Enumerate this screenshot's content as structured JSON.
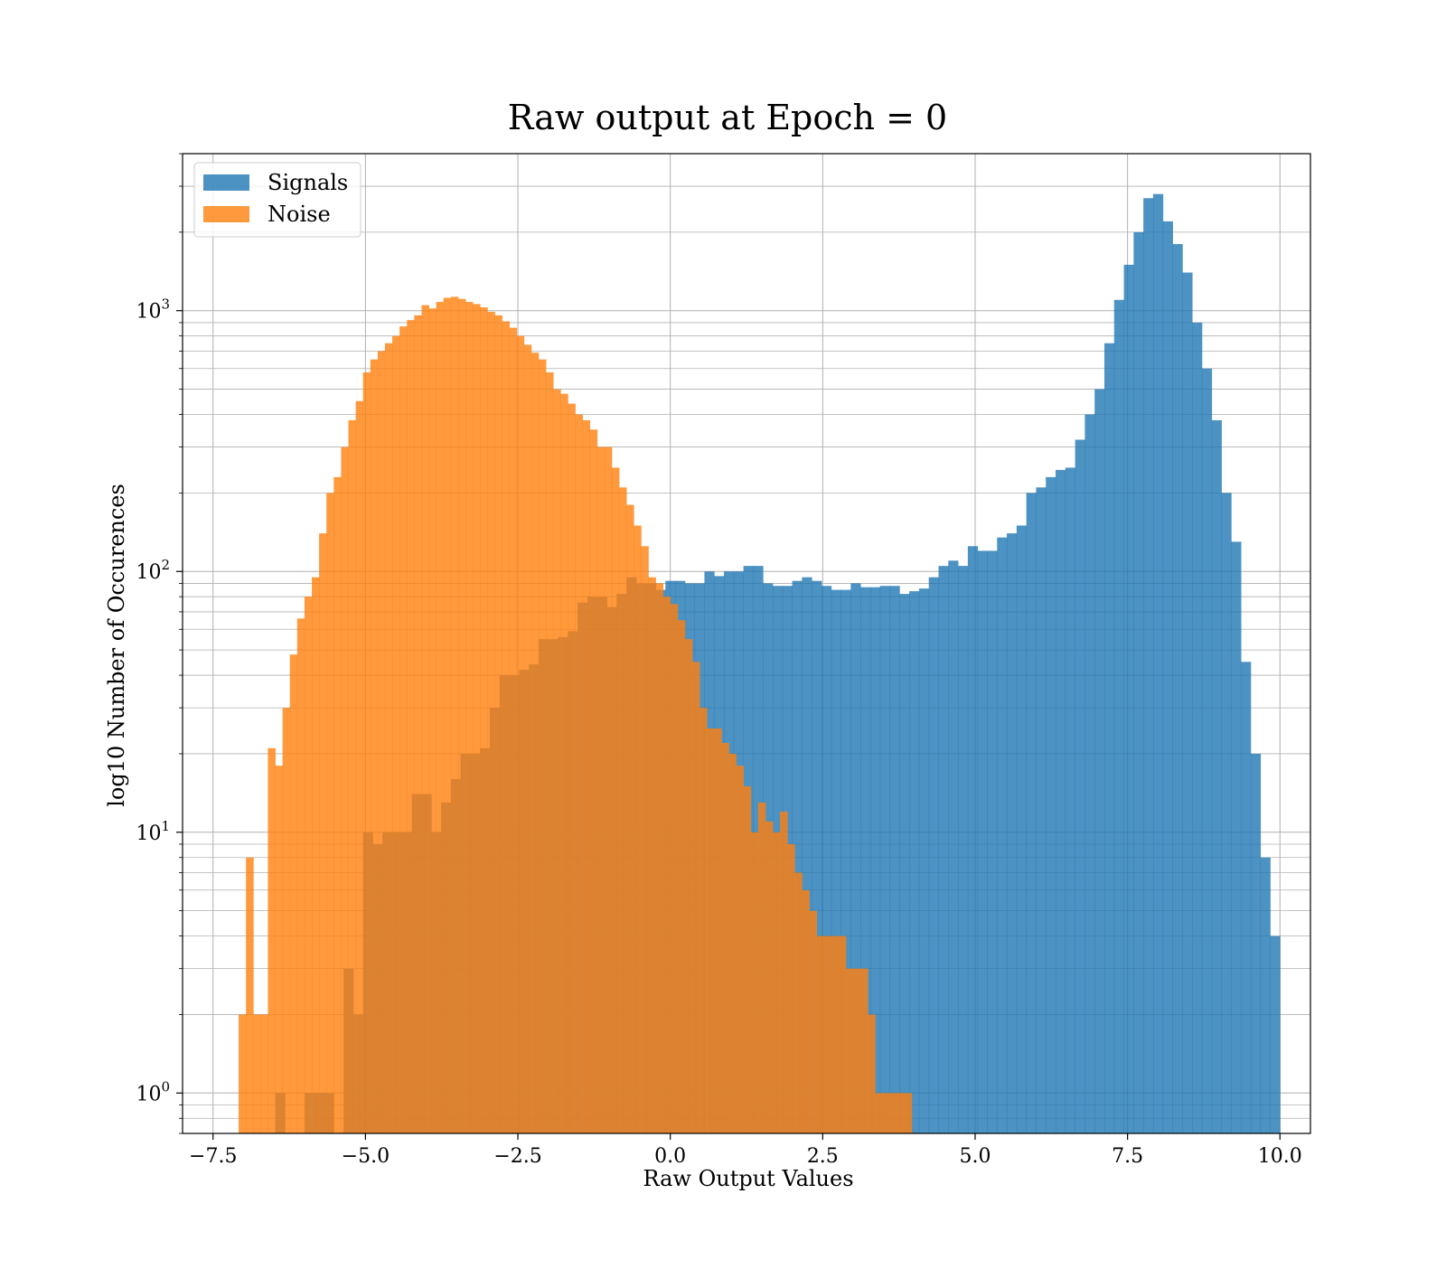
{
  "chart_data": {
    "type": "histogram",
    "title": "Raw output at Epoch = 0",
    "xlabel": "Raw Output Values",
    "ylabel": "log10 Number of Occurences",
    "xlim": [
      -8.0,
      10.5
    ],
    "ylim": [
      0.7,
      4000
    ],
    "yscale": "log",
    "grid": true,
    "legend_position": "top-left",
    "x_ticks": [
      {
        "value": -7.5,
        "label": "−7.5"
      },
      {
        "value": -5.0,
        "label": "−5.0"
      },
      {
        "value": -2.5,
        "label": "−2.5"
      },
      {
        "value": 0.0,
        "label": "0.0"
      },
      {
        "value": 2.5,
        "label": "2.5"
      },
      {
        "value": 5.0,
        "label": "5.0"
      },
      {
        "value": 7.5,
        "label": "7.5"
      },
      {
        "value": 10.0,
        "label": "10.0"
      }
    ],
    "y_ticks": [
      {
        "value": 1,
        "base": "10",
        "exp": "0"
      },
      {
        "value": 10,
        "base": "10",
        "exp": "1"
      },
      {
        "value": 100,
        "base": "10",
        "exp": "2"
      },
      {
        "value": 1000,
        "base": "10",
        "exp": "3"
      }
    ],
    "series": [
      {
        "name": "Signals",
        "color": "#1f77b4",
        "bin_start": -6.48,
        "bin_width": 0.16,
        "counts": [
          1,
          0,
          0,
          1,
          1,
          1,
          0,
          3,
          2,
          10,
          9,
          10,
          10,
          10,
          14,
          14,
          10,
          13,
          16,
          20,
          20,
          21,
          30,
          40,
          40,
          42,
          44,
          55,
          55,
          56,
          59,
          76,
          80,
          80,
          73,
          82,
          95,
          90,
          90,
          85,
          92,
          92,
          90,
          90,
          100,
          96,
          100,
          100,
          105,
          105,
          90,
          88,
          88,
          92,
          95,
          92,
          88,
          85,
          85,
          90,
          87,
          87,
          88,
          88,
          82,
          84,
          86,
          95,
          105,
          110,
          105,
          125,
          120,
          120,
          135,
          140,
          150,
          200,
          210,
          230,
          245,
          250,
          320,
          400,
          500,
          750,
          1100,
          1500,
          2000,
          2700,
          2800,
          2200,
          1800,
          1400,
          900,
          600,
          380,
          200,
          130,
          45,
          20,
          8,
          4
        ],
        "opacity": 0.8
      },
      {
        "name": "Noise",
        "color": "#ff7f0e",
        "bin_start": -7.08,
        "bin_width": 0.12,
        "counts": [
          2,
          8,
          2,
          2,
          21,
          18,
          30,
          48,
          66,
          80,
          95,
          140,
          200,
          230,
          300,
          380,
          450,
          580,
          650,
          700,
          750,
          800,
          870,
          920,
          960,
          1050,
          1020,
          1080,
          1120,
          1130,
          1110,
          1080,
          1060,
          1030,
          990,
          960,
          910,
          860,
          800,
          740,
          690,
          650,
          580,
          500,
          480,
          440,
          400,
          380,
          350,
          300,
          300,
          250,
          210,
          180,
          150,
          125,
          95,
          90,
          80,
          75,
          65,
          55,
          45,
          30,
          25,
          25,
          22,
          20,
          18,
          15,
          10,
          13,
          11,
          10,
          12,
          9,
          7,
          6,
          5,
          4,
          4,
          4,
          4,
          3,
          3,
          3,
          2,
          1,
          1,
          1,
          1,
          1
        ],
        "opacity": 0.8
      }
    ]
  }
}
